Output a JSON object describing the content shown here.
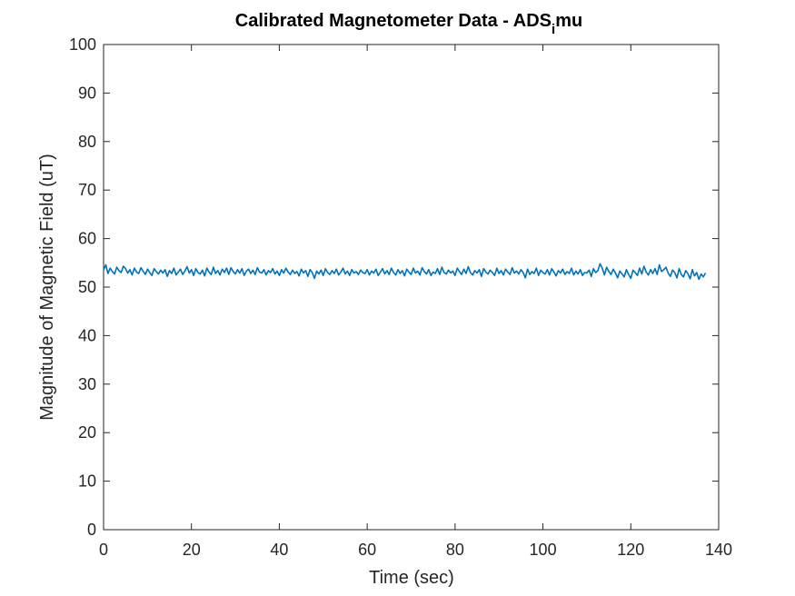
{
  "chart_data": {
    "type": "line",
    "title_main": "Calibrated Magnetometer Data - ADS",
    "title_sub": "i",
    "title_tail": "mu",
    "xlabel": "Time (sec)",
    "ylabel": "Magnitude of Magnetic Field (uT)",
    "xlim": [
      0,
      140
    ],
    "ylim": [
      0,
      100
    ],
    "xticks": [
      0,
      20,
      40,
      60,
      80,
      100,
      120,
      140
    ],
    "yticks": [
      0,
      10,
      20,
      30,
      40,
      50,
      60,
      70,
      80,
      90,
      100
    ],
    "xtick_labels": [
      "0",
      "20",
      "40",
      "60",
      "80",
      "100",
      "120",
      "140"
    ],
    "ytick_labels": [
      "0",
      "10",
      "20",
      "30",
      "40",
      "50",
      "60",
      "70",
      "80",
      "90",
      "100"
    ],
    "grid": false,
    "series": [
      {
        "color": "#0072bd",
        "x_start": 0,
        "x_step": 0.5,
        "y": [
          53.5,
          54.6,
          52.8,
          53.9,
          53.2,
          52.7,
          54.1,
          53.4,
          53.0,
          54.3,
          53.8,
          52.9,
          53.6,
          52.5,
          53.9,
          53.1,
          52.8,
          54.0,
          53.3,
          52.6,
          53.7,
          53.0,
          52.4,
          53.8,
          53.2,
          52.7,
          53.5,
          52.9,
          53.6,
          52.2,
          53.4,
          52.8,
          53.9,
          52.5,
          53.1,
          53.7,
          52.6,
          53.3,
          54.2,
          52.9,
          53.6,
          52.4,
          53.8,
          53.0,
          52.7,
          53.5,
          52.3,
          53.9,
          53.1,
          52.6,
          54.1,
          52.8,
          53.4,
          52.5,
          53.7,
          53.0,
          53.9,
          52.6,
          54.0,
          53.2,
          52.7,
          53.6,
          52.9,
          53.8,
          52.4,
          53.3,
          53.7,
          52.8,
          53.5,
          52.6,
          54.0,
          53.1,
          52.9,
          53.6,
          52.5,
          53.4,
          53.0,
          53.8,
          52.7,
          53.3,
          52.4,
          53.6,
          52.9,
          53.9,
          53.1,
          52.6,
          53.5,
          52.8,
          53.2,
          52.3,
          53.7,
          52.9,
          53.4,
          52.2,
          53.6,
          53.0,
          51.8,
          53.3,
          52.7,
          53.5,
          52.4,
          53.8,
          53.0,
          52.6,
          53.4,
          52.8,
          53.7,
          52.5,
          53.1,
          53.9,
          52.7,
          53.3,
          52.4,
          53.6,
          52.9,
          53.2,
          52.6,
          53.5,
          53.0,
          52.8,
          53.6,
          52.5,
          53.3,
          52.9,
          53.7,
          52.4,
          53.1,
          53.8,
          52.7,
          53.4,
          52.6,
          53.9,
          53.0,
          52.5,
          53.6,
          52.8,
          53.4,
          52.3,
          53.7,
          53.1,
          52.6,
          53.9,
          52.9,
          53.3,
          52.5,
          54.0,
          53.2,
          52.7,
          53.6,
          52.4,
          53.1,
          52.8,
          53.8,
          52.6,
          54.1,
          53.0,
          52.7,
          53.5,
          52.9,
          53.3,
          52.4,
          53.9,
          53.2,
          52.6,
          53.7,
          52.8,
          54.2,
          53.0,
          52.5,
          53.4,
          52.9,
          53.6,
          52.2,
          53.8,
          53.1,
          52.7,
          53.5,
          53.0,
          52.4,
          53.9,
          52.8,
          53.4,
          52.5,
          53.7,
          53.1,
          52.6,
          54.0,
          52.9,
          53.3,
          52.7,
          53.6,
          53.0,
          51.9,
          53.7,
          52.6,
          53.2,
          52.8,
          53.9,
          52.4,
          53.5,
          53.0,
          52.7,
          53.6,
          52.5,
          53.8,
          53.1,
          52.3,
          53.4,
          52.9,
          53.7,
          52.6,
          53.2,
          52.8,
          53.9,
          52.5,
          53.3,
          52.7,
          53.6,
          52.4,
          53.0,
          52.9,
          53.5,
          52.2,
          53.8,
          53.0,
          53.4,
          54.8,
          53.9,
          52.5,
          54.1,
          53.2,
          52.6,
          53.7,
          52.9,
          51.9,
          53.3,
          52.7,
          52.1,
          53.6,
          52.6,
          51.8,
          53.5,
          53.0,
          52.4,
          53.9,
          52.7,
          54.3,
          53.1,
          52.5,
          53.6,
          52.8,
          53.8,
          52.6,
          54.6,
          53.2,
          53.6,
          54.1,
          52.9,
          52.2,
          53.5,
          53.0,
          51.9,
          53.8,
          52.6,
          52.1,
          53.4,
          52.8,
          51.7,
          53.6,
          52.3,
          53.0,
          51.6,
          52.7,
          52.1,
          52.9
        ]
      }
    ]
  }
}
